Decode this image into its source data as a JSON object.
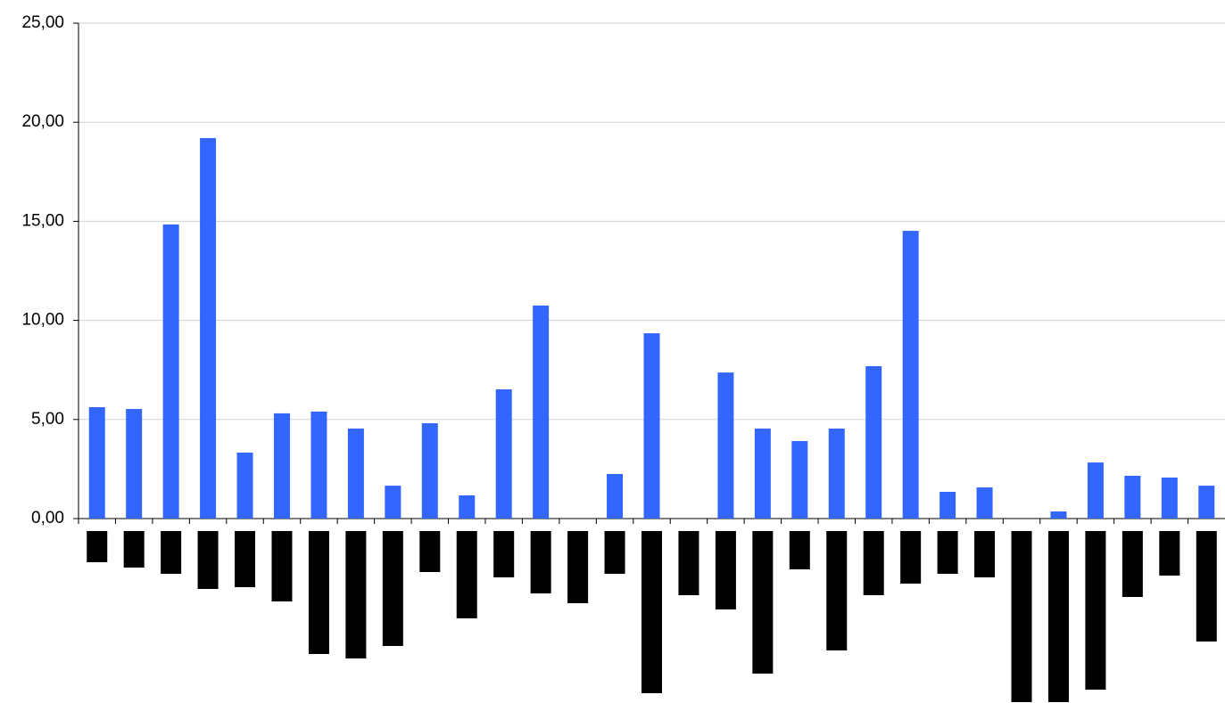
{
  "chart_data": {
    "type": "bar",
    "categories": [
      null,
      null,
      null,
      null,
      null,
      null,
      null,
      null,
      null,
      null,
      null,
      null,
      null,
      null,
      null,
      null,
      null,
      null,
      null,
      null,
      null,
      null,
      null,
      null,
      null,
      null,
      null,
      null,
      null,
      null,
      null
    ],
    "values": [
      5.62,
      5.53,
      14.84,
      19.2,
      3.33,
      5.31,
      5.4,
      4.54,
      1.66,
      4.81,
      1.17,
      6.52,
      10.75,
      0,
      2.25,
      9.35,
      0,
      7.37,
      4.54,
      3.91,
      4.54,
      7.69,
      14.52,
      1.35,
      1.57,
      0,
      0.36,
      2.83,
      2.16,
      2.07,
      1.66
    ],
    "color": "#3366ff",
    "ylim": [
      0,
      25
    ],
    "yticks": [
      {
        "value": 0,
        "label": "0,00"
      },
      {
        "value": 5,
        "label": "5,00"
      },
      {
        "value": 10,
        "label": "10,00"
      },
      {
        "value": 15,
        "label": "15,00"
      },
      {
        "value": 20,
        "label": "20,00"
      },
      {
        "value": 25,
        "label": "25,00"
      }
    ],
    "grid": true
  }
}
